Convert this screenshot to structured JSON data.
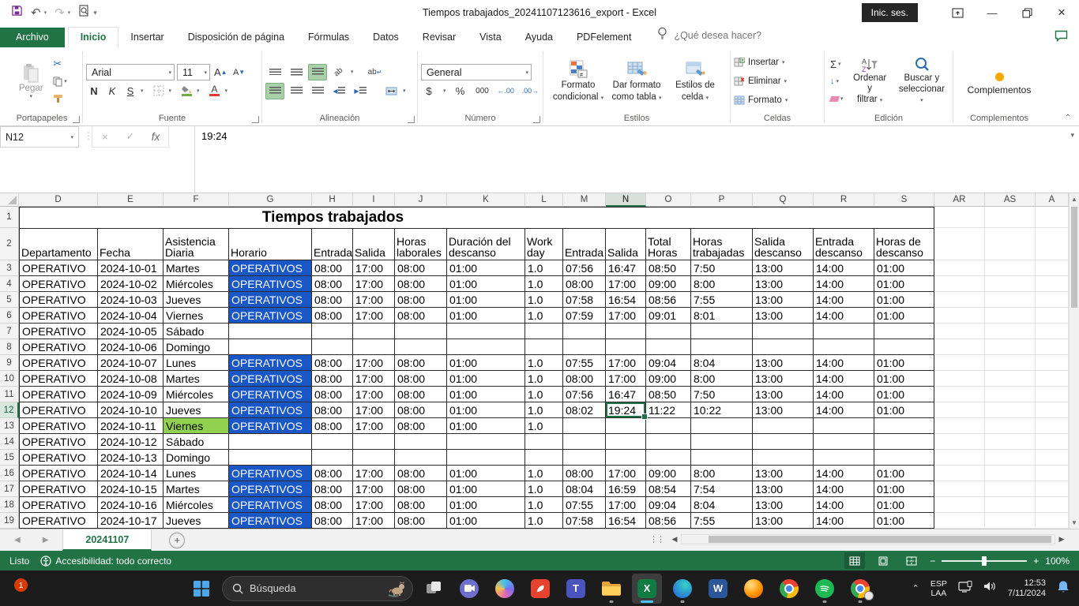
{
  "titlebar": {
    "title": "Tiempos trabajados_20241107123616_export - Excel",
    "signin": "Inic. ses."
  },
  "menu": {
    "tabs": [
      {
        "label": "Archivo",
        "type": "file"
      },
      {
        "label": "Inicio",
        "active": true
      },
      {
        "label": "Insertar"
      },
      {
        "label": "Disposición de página"
      },
      {
        "label": "Fórmulas"
      },
      {
        "label": "Datos"
      },
      {
        "label": "Revisar"
      },
      {
        "label": "Vista"
      },
      {
        "label": "Ayuda"
      },
      {
        "label": "PDFelement"
      }
    ],
    "search_placeholder": "¿Qué desea hacer?"
  },
  "icons": {
    "scissors": "✂",
    "undo": "↶",
    "redo": "↷",
    "sigma": "Σ",
    "fill_down": "↓",
    "font_grow": "A",
    "font_shrink": "A",
    "wrap_abbr": "ab"
  },
  "ribbon": {
    "clipboard": {
      "paste": "Pegar",
      "group": "Portapapeles"
    },
    "font": {
      "name": "Arial",
      "size": "11",
      "bold": "N",
      "italic": "K",
      "underline": "S",
      "group": "Fuente"
    },
    "alignment": {
      "group": "Alineación"
    },
    "number": {
      "format": "General",
      "currency": "$",
      "percent": "%",
      "thousand": "000",
      "dec_left": "←.00",
      "dec_right": ".00→",
      "group": "Número"
    },
    "styles": {
      "conditional": [
        "Formato",
        "condicional"
      ],
      "table": [
        "Dar formato",
        "como tabla"
      ],
      "cell": [
        "Estilos de",
        "celda"
      ],
      "group": "Estilos"
    },
    "cells": {
      "insert": "Insertar",
      "delete": "Eliminar",
      "format": "Formato",
      "group": "Celdas"
    },
    "editing": {
      "sort": [
        "Ordenar y",
        "filtrar"
      ],
      "find": [
        "Buscar y",
        "seleccionar"
      ],
      "group": "Edición"
    },
    "addins": {
      "label": "Complementos",
      "group": "Complementos"
    }
  },
  "formula_bar": {
    "name_box": "N12",
    "fx": "fx",
    "value": "19:24"
  },
  "sheet": {
    "title": "Tiempos trabajados",
    "col_letters": [
      "D",
      "E",
      "F",
      "G",
      "H",
      "I",
      "J",
      "K",
      "L",
      "M",
      "N",
      "O",
      "P",
      "Q",
      "R",
      "S",
      "AR",
      "AS",
      "A"
    ],
    "selected": {
      "row": 12,
      "col": "N",
      "col_index": 10,
      "ref": "N12"
    },
    "headers": [
      "Departamento",
      "Fecha",
      "Asistencia Diaria",
      "Horario",
      "Entrada",
      "Salida",
      "Horas laborales",
      "Duración del descanso",
      "Work day",
      "Entrada",
      "Salida",
      "Total Horas",
      "Horas trabajadas",
      "Salida descanso",
      "Entrada descanso",
      "Horas de descanso"
    ],
    "rows": [
      {
        "n": 3,
        "cells": [
          "OPERATIVO",
          "2024-10-01",
          "Martes",
          "OPERATIVOS",
          "08:00",
          "17:00",
          "08:00",
          "01:00",
          "1.0",
          "07:56",
          "16:47",
          "08:50",
          "7:50",
          "13:00",
          "14:00",
          "01:00"
        ]
      },
      {
        "n": 4,
        "cells": [
          "OPERATIVO",
          "2024-10-02",
          "Miércoles",
          "OPERATIVOS",
          "08:00",
          "17:00",
          "08:00",
          "01:00",
          "1.0",
          "08:00",
          "17:00",
          "09:00",
          "8:00",
          "13:00",
          "14:00",
          "01:00"
        ]
      },
      {
        "n": 5,
        "cells": [
          "OPERATIVO",
          "2024-10-03",
          "Jueves",
          "OPERATIVOS",
          "08:00",
          "17:00",
          "08:00",
          "01:00",
          "1.0",
          "07:58",
          "16:54",
          "08:56",
          "7:55",
          "13:00",
          "14:00",
          "01:00"
        ]
      },
      {
        "n": 6,
        "cells": [
          "OPERATIVO",
          "2024-10-04",
          "Viernes",
          "OPERATIVOS",
          "08:00",
          "17:00",
          "08:00",
          "01:00",
          "1.0",
          "07:59",
          "17:00",
          "09:01",
          "8:01",
          "13:00",
          "14:00",
          "01:00"
        ]
      },
      {
        "n": 7,
        "cells": [
          "OPERATIVO",
          "2024-10-05",
          "Sábado",
          "",
          "",
          "",
          "",
          "",
          "",
          "",
          "",
          "",
          "",
          "",
          "",
          ""
        ]
      },
      {
        "n": 8,
        "cells": [
          "OPERATIVO",
          "2024-10-06",
          "Domingo",
          "",
          "",
          "",
          "",
          "",
          "",
          "",
          "",
          "",
          "",
          "",
          "",
          ""
        ]
      },
      {
        "n": 9,
        "cells": [
          "OPERATIVO",
          "2024-10-07",
          "Lunes",
          "OPERATIVOS",
          "08:00",
          "17:00",
          "08:00",
          "01:00",
          "1.0",
          "07:55",
          "17:00",
          "09:04",
          "8:04",
          "13:00",
          "14:00",
          "01:00"
        ]
      },
      {
        "n": 10,
        "cells": [
          "OPERATIVO",
          "2024-10-08",
          "Martes",
          "OPERATIVOS",
          "08:00",
          "17:00",
          "08:00",
          "01:00",
          "1.0",
          "08:00",
          "17:00",
          "09:00",
          "8:00",
          "13:00",
          "14:00",
          "01:00"
        ]
      },
      {
        "n": 11,
        "cells": [
          "OPERATIVO",
          "2024-10-09",
          "Miércoles",
          "OPERATIVOS",
          "08:00",
          "17:00",
          "08:00",
          "01:00",
          "1.0",
          "07:56",
          "16:47",
          "08:50",
          "7:50",
          "13:00",
          "14:00",
          "01:00"
        ]
      },
      {
        "n": 12,
        "cells": [
          "OPERATIVO",
          "2024-10-10",
          "Jueves",
          "OPERATIVOS",
          "08:00",
          "17:00",
          "08:00",
          "01:00",
          "1.0",
          "08:02",
          "19:24",
          "11:22",
          "10:22",
          "13:00",
          "14:00",
          "01:00"
        ]
      },
      {
        "n": 13,
        "cells": [
          "OPERATIVO",
          "2024-10-11",
          "Viernes",
          "OPERATIVOS",
          "08:00",
          "17:00",
          "08:00",
          "01:00",
          "1.0",
          "",
          "",
          "",
          "",
          "",
          "",
          ""
        ],
        "green_cols": [
          2
        ]
      },
      {
        "n": 14,
        "cells": [
          "OPERATIVO",
          "2024-10-12",
          "Sábado",
          "",
          "",
          "",
          "",
          "",
          "",
          "",
          "",
          "",
          "",
          "",
          "",
          ""
        ]
      },
      {
        "n": 15,
        "cells": [
          "OPERATIVO",
          "2024-10-13",
          "Domingo",
          "",
          "",
          "",
          "",
          "",
          "",
          "",
          "",
          "",
          "",
          "",
          "",
          ""
        ]
      },
      {
        "n": 16,
        "cells": [
          "OPERATIVO",
          "2024-10-14",
          "Lunes",
          "OPERATIVOS",
          "08:00",
          "17:00",
          "08:00",
          "01:00",
          "1.0",
          "08:00",
          "17:00",
          "09:00",
          "8:00",
          "13:00",
          "14:00",
          "01:00"
        ]
      },
      {
        "n": 17,
        "cells": [
          "OPERATIVO",
          "2024-10-15",
          "Martes",
          "OPERATIVOS",
          "08:00",
          "17:00",
          "08:00",
          "01:00",
          "1.0",
          "08:04",
          "16:59",
          "08:54",
          "7:54",
          "13:00",
          "14:00",
          "01:00"
        ]
      },
      {
        "n": 18,
        "cells": [
          "OPERATIVO",
          "2024-10-16",
          "Miércoles",
          "OPERATIVOS",
          "08:00",
          "17:00",
          "08:00",
          "01:00",
          "1.0",
          "07:55",
          "17:00",
          "09:04",
          "8:04",
          "13:00",
          "14:00",
          "01:00"
        ]
      },
      {
        "n": 19,
        "cells": [
          "OPERATIVO",
          "2024-10-17",
          "Jueves",
          "OPERATIVOS",
          "08:00",
          "17:00",
          "08:00",
          "01:00",
          "1.0",
          "07:58",
          "16:54",
          "08:56",
          "7:55",
          "13:00",
          "14:00",
          "01:00"
        ]
      }
    ],
    "colors": {
      "horario_fill": "#1a57c6",
      "viernes_fill": "#92d050",
      "selection": "#1e7145"
    }
  },
  "sheet_tabs": {
    "active": "20241107"
  },
  "status_bar": {
    "mode": "Listo",
    "accessibility": "Accesibilidad: todo correcto",
    "zoom": "100%"
  },
  "taskbar": {
    "search_placeholder": "Búsqueda",
    "badge": "1",
    "tray": {
      "lang_top": "ESP",
      "lang_bottom": "LAA",
      "time": "12:53",
      "date": "7/11/2024"
    }
  }
}
